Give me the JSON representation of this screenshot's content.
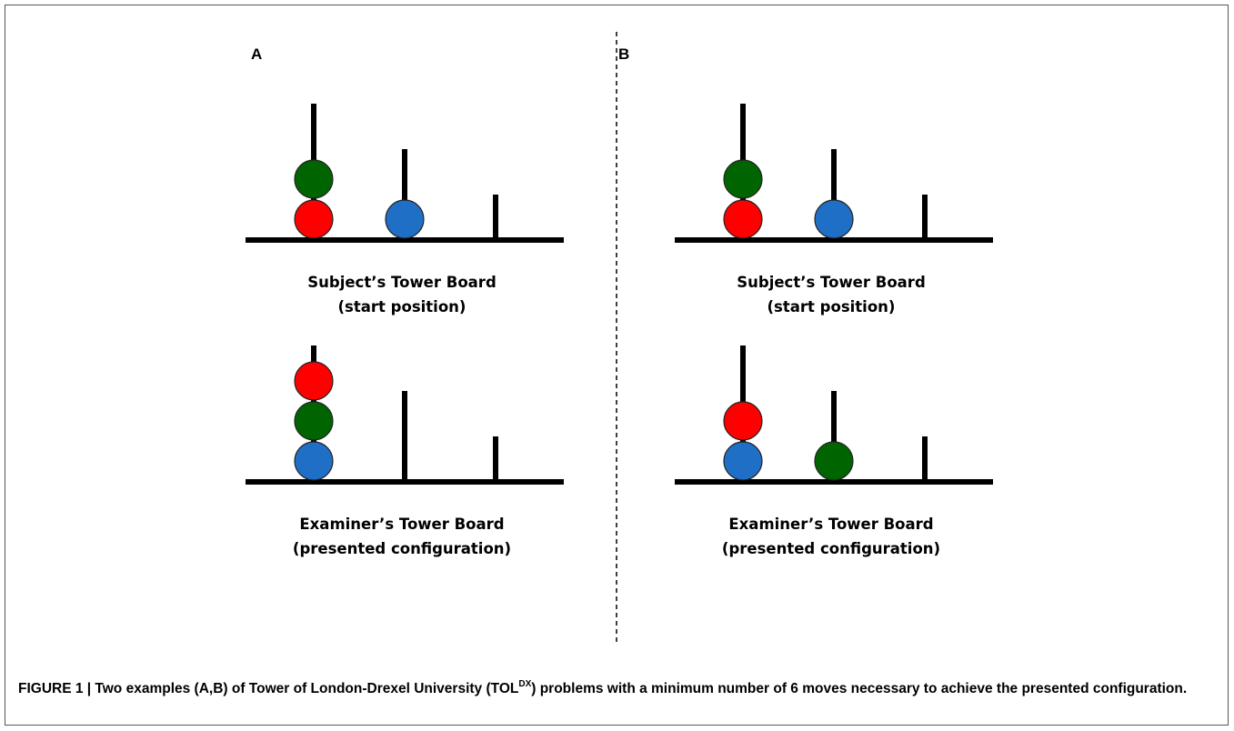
{
  "panels": [
    {
      "letter": "A",
      "boards": [
        {
          "label_line1": "Subject’s Tower Board",
          "label_line2": "(start position)",
          "pegs": [
            {
              "balls_bottom_to_top": [
                "red",
                "green"
              ]
            },
            {
              "balls_bottom_to_top": [
                "blue"
              ]
            },
            {
              "balls_bottom_to_top": []
            }
          ]
        },
        {
          "label_line1": "Examiner’s Tower Board",
          "label_line2": "(presented configuration)",
          "pegs": [
            {
              "balls_bottom_to_top": [
                "blue",
                "green",
                "red"
              ]
            },
            {
              "balls_bottom_to_top": []
            },
            {
              "balls_bottom_to_top": []
            }
          ]
        }
      ]
    },
    {
      "letter": "B",
      "boards": [
        {
          "label_line1": "Subject’s Tower Board",
          "label_line2": "(start position)",
          "pegs": [
            {
              "balls_bottom_to_top": [
                "red",
                "green"
              ]
            },
            {
              "balls_bottom_to_top": [
                "blue"
              ]
            },
            {
              "balls_bottom_to_top": []
            }
          ]
        },
        {
          "label_line1": "Examiner’s Tower Board",
          "label_line2": "(presented configuration)",
          "pegs": [
            {
              "balls_bottom_to_top": [
                "blue",
                "red"
              ]
            },
            {
              "balls_bottom_to_top": [
                "green"
              ]
            },
            {
              "balls_bottom_to_top": []
            }
          ]
        }
      ]
    }
  ],
  "ball_colors": {
    "red": "#ff0000",
    "green": "#006400",
    "blue": "#1f6fc6"
  },
  "caption": {
    "part1": "FIGURE 1 | Two examples (A,B) of Tower of London-Drexel University (TOL",
    "sup": "DX",
    "part2": ") problems with a minimum number of 6 moves necessary to achieve the presented configuration."
  }
}
